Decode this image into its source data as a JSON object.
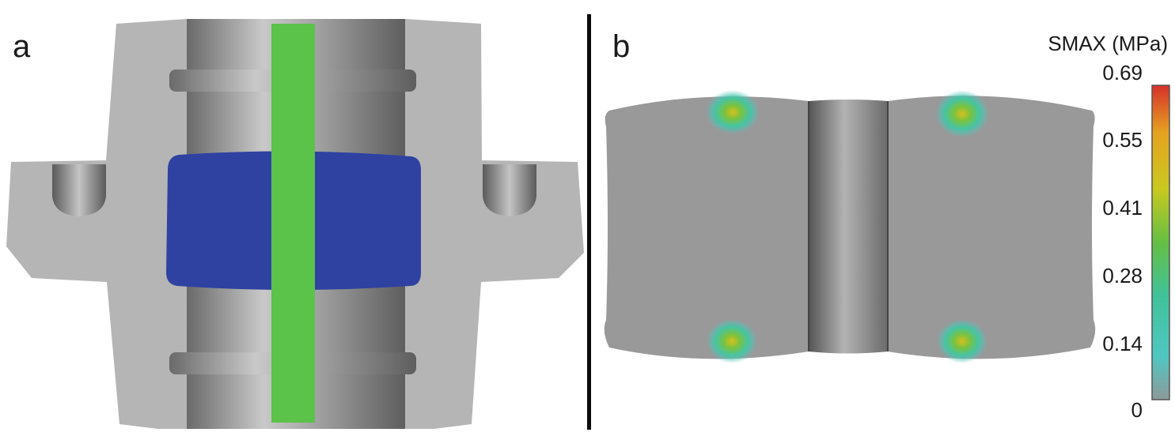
{
  "panels": {
    "a": {
      "letter": "a"
    },
    "b": {
      "letter": "b"
    }
  },
  "legend": {
    "title": "SMAX (MPa)",
    "ticks": [
      "0.69",
      "0.55",
      "0.41",
      "0.28",
      "0.14",
      "0"
    ],
    "colors": [
      "#d6302a",
      "#e6a221",
      "#c9c91f",
      "#64bf43",
      "#3fc29a",
      "#4fc7c2",
      "#8d9a9a"
    ]
  },
  "colors": {
    "housing": "#b5b5b5",
    "shaft": "#8f8f8f",
    "seal": "#2f42a1",
    "strip": "#5bc24a",
    "model": "#999999"
  }
}
